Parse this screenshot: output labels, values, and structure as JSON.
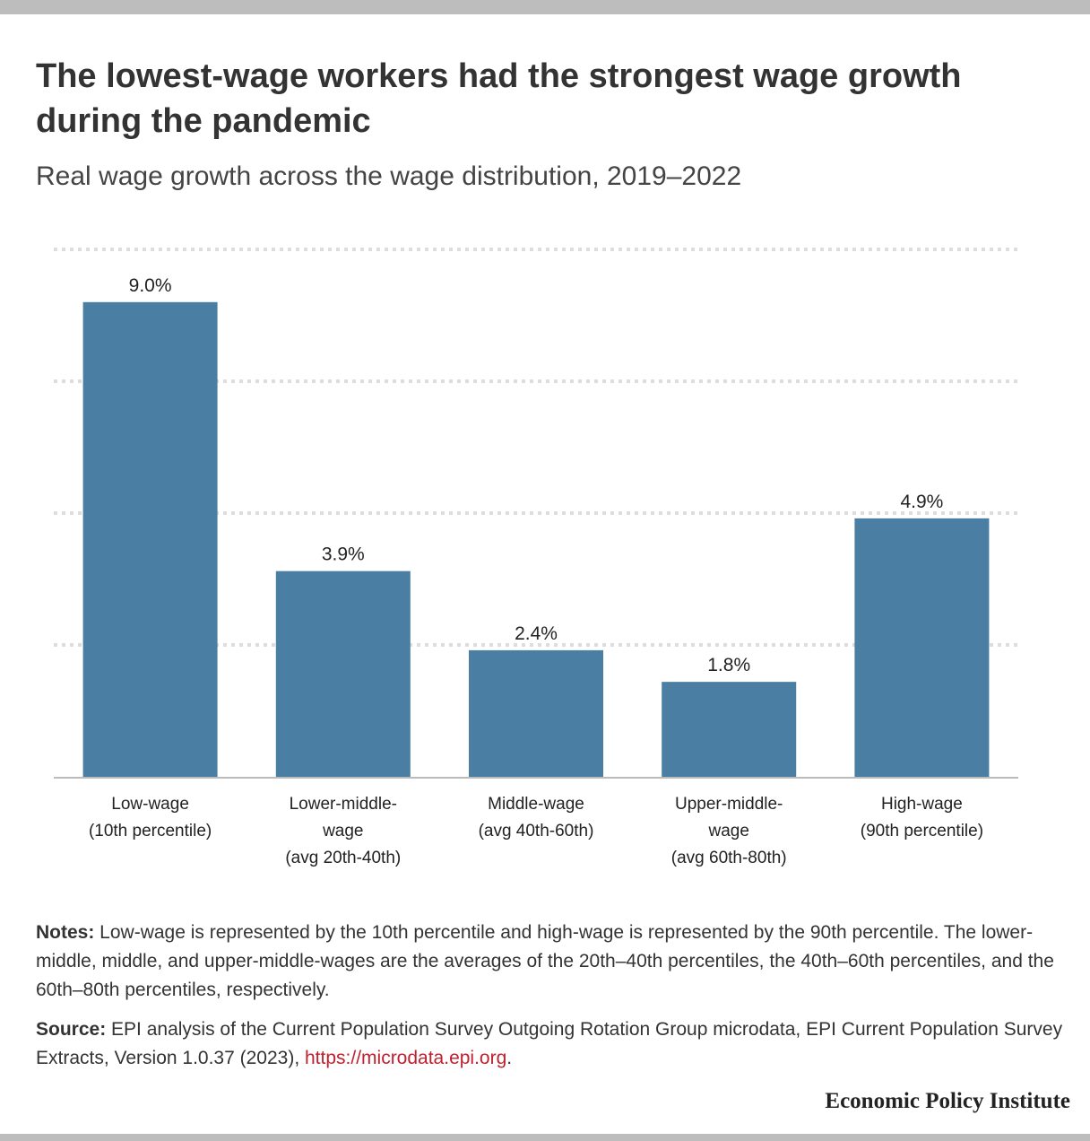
{
  "title": "The lowest-wage workers had the strongest wage growth during the pandemic",
  "subtitle": "Real wage growth across the wage distribution, 2019–2022",
  "chart_data": {
    "type": "bar",
    "categories": [
      [
        "Low-wage",
        "(10th percentile)"
      ],
      [
        "Lower-middle-",
        "wage",
        "(avg 20th-40th)"
      ],
      [
        "Middle-wage",
        "(avg 40th-60th)"
      ],
      [
        "Upper-middle-",
        "wage",
        "(avg 60th-80th)"
      ],
      [
        "High-wage",
        "(90th percentile)"
      ]
    ],
    "values": [
      9.0,
      3.9,
      2.4,
      1.8,
      4.9
    ],
    "value_labels": [
      "9.0%",
      "3.9%",
      "2.4%",
      "1.8%",
      "4.9%"
    ],
    "ylim": [
      0,
      10
    ],
    "gridlines": [
      2.5,
      5,
      7.5,
      10
    ],
    "grid": true,
    "bar_color": "#4a7ea2"
  },
  "notes": {
    "lead": "Notes:",
    "text": " Low-wage is represented by the 10th percentile and high-wage is represented by the 90th percentile. The lower-middle, middle, and upper-middle-wages are the averages of the 20th–40th percentiles, the 40th–60th percentiles, and the 60th–80th percentiles, respectively."
  },
  "source": {
    "lead": "Source:",
    "text": " EPI analysis of the Current Population Survey Outgoing Rotation Group microdata, EPI Current Population Survey Extracts, Version 1.0.37 (2023), ",
    "link": "https://microdata.epi.org",
    "tail": "."
  },
  "brand": "Economic Policy Institute"
}
